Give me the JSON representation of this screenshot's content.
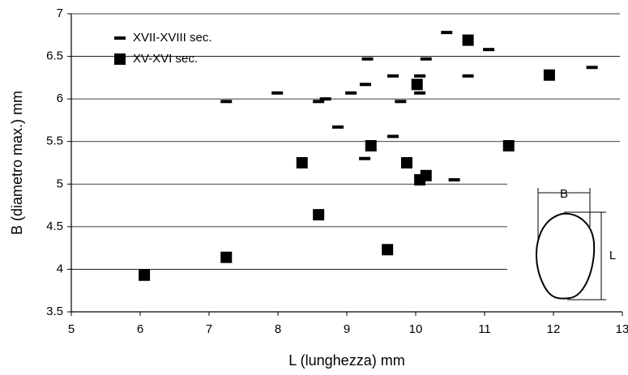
{
  "chart_data": {
    "type": "scatter",
    "x_label": "L (lunghezza) mm",
    "y_label": "B (diametro max.) mm",
    "xlim": [
      5,
      13
    ],
    "xticks": [
      5,
      6,
      7,
      8,
      9,
      10,
      11,
      12,
      13
    ],
    "ylim": [
      3.5,
      7
    ],
    "yticks": [
      3.5,
      4,
      4.5,
      5,
      5.5,
      6,
      6.5,
      7
    ],
    "grid": true,
    "legend": "upper left",
    "annotations": [
      "B",
      "L"
    ],
    "series": [
      {
        "name": "XVII-XVIII sec.",
        "marker": "dash",
        "color": "#000000",
        "x": [
          10.45,
          11.06,
          9.3,
          10.15,
          12.56,
          7.99,
          7.25,
          8.59,
          8.69,
          9.06,
          9.27,
          9.67,
          10.06,
          9.78,
          10.06,
          10.76,
          8.87,
          9.67,
          9.26,
          10.56
        ],
        "values": [
          6.78,
          6.58,
          6.47,
          6.47,
          6.37,
          6.07,
          5.97,
          5.97,
          6.0,
          6.07,
          6.17,
          6.27,
          6.27,
          5.97,
          6.07,
          6.27,
          5.67,
          5.56,
          5.3,
          5.05
        ]
      },
      {
        "name": "XV-XVI sec.",
        "marker": "square",
        "color": "#000000",
        "x": [
          10.76,
          10.02,
          11.94,
          9.35,
          11.35,
          8.35,
          9.87,
          10.15,
          10.06,
          8.59,
          9.59,
          7.25,
          6.06
        ],
        "values": [
          6.69,
          6.17,
          6.28,
          5.45,
          5.45,
          5.25,
          5.25,
          5.1,
          5.05,
          4.64,
          4.23,
          4.14,
          3.93
        ]
      }
    ]
  }
}
